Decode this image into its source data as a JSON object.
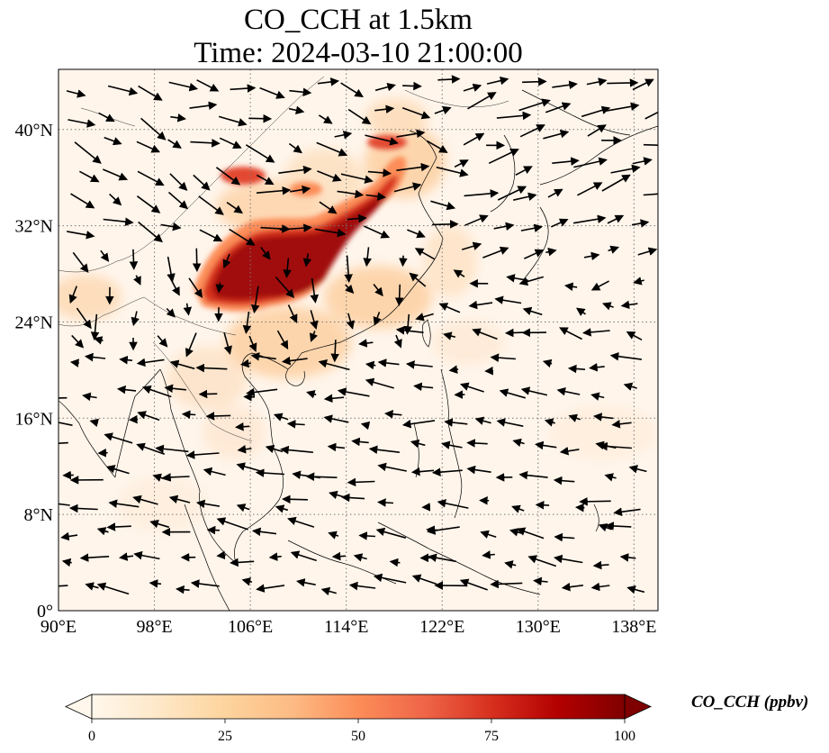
{
  "title": {
    "line1": "CO_CCH at 1.5km",
    "line2": "Time: 2024-03-10 21:00:00"
  },
  "map": {
    "lon_range": [
      90,
      140
    ],
    "lat_range": [
      0,
      45
    ],
    "lon_ticks": [
      {
        "value": 90,
        "label": "90°E"
      },
      {
        "value": 98,
        "label": "98°E"
      },
      {
        "value": 106,
        "label": "106°E"
      },
      {
        "value": 114,
        "label": "114°E"
      },
      {
        "value": 122,
        "label": "122°E"
      },
      {
        "value": 130,
        "label": "130°E"
      },
      {
        "value": 138,
        "label": "138°E"
      }
    ],
    "lat_ticks": [
      {
        "value": 0,
        "label": "0°"
      },
      {
        "value": 8,
        "label": "8°N"
      },
      {
        "value": 16,
        "label": "16°N"
      },
      {
        "value": 24,
        "label": "24°N"
      },
      {
        "value": 32,
        "label": "32°N"
      },
      {
        "value": 40,
        "label": "40°N"
      }
    ],
    "gridlines": true,
    "colormap": "OrRd",
    "background_color": "#fff5eb",
    "plume_color": "#9b0c0c"
  },
  "colorbar": {
    "label": "CO_CCH (ppbv)",
    "min": 0,
    "max": 100,
    "extend": "both",
    "ticks": [
      {
        "value": 0,
        "label": "0"
      },
      {
        "value": 25,
        "label": "25"
      },
      {
        "value": 50,
        "label": "50"
      },
      {
        "value": 75,
        "label": "75"
      },
      {
        "value": 100,
        "label": "100"
      }
    ]
  }
}
